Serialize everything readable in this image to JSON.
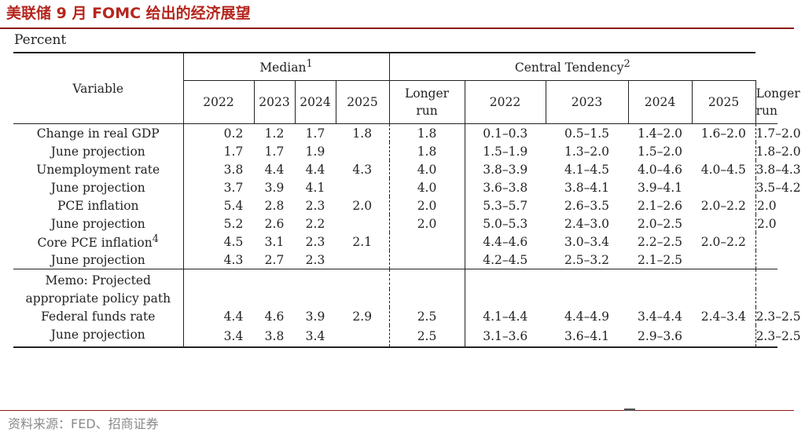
{
  "title": "美联储 9 月 FOMC 给出的经济展望",
  "unit_label": "Percent",
  "header": {
    "variable": "Variable",
    "median": "Median",
    "median_note": "1",
    "central_tendency": "Central Tendency",
    "central_tendency_note": "2",
    "years": [
      "2022",
      "2023",
      "2024",
      "2025"
    ],
    "longer_run_1": "Longer",
    "longer_run_2": "run"
  },
  "rows": [
    {
      "label": "Change in real GDP",
      "median": [
        "0.2",
        "1.2",
        "1.7",
        "1.8",
        "1.8"
      ],
      "central": [
        "0.1–0.3",
        "0.5–1.5",
        "1.4–2.0",
        "1.6–2.0",
        "1.7–2.0"
      ]
    },
    {
      "label": "June projection",
      "median": [
        "1.7",
        "1.7",
        "1.9",
        "",
        "1.8"
      ],
      "central": [
        "1.5–1.9",
        "1.3–2.0",
        "1.5–2.0",
        "",
        "1.8–2.0"
      ]
    },
    {
      "label": "Unemployment rate",
      "median": [
        "3.8",
        "4.4",
        "4.4",
        "4.3",
        "4.0"
      ],
      "central": [
        "3.8–3.9",
        "4.1–4.5",
        "4.0–4.6",
        "4.0–4.5",
        "3.8–4.3"
      ]
    },
    {
      "label": "June projection",
      "median": [
        "3.7",
        "3.9",
        "4.1",
        "",
        "4.0"
      ],
      "central": [
        "3.6–3.8",
        "3.8–4.1",
        "3.9–4.1",
        "",
        "3.5–4.2"
      ]
    },
    {
      "label": "PCE inflation",
      "median": [
        "5.4",
        "2.8",
        "2.3",
        "2.0",
        "2.0"
      ],
      "central": [
        "5.3–5.7",
        "2.6–3.5",
        "2.1–2.6",
        "2.0–2.2",
        "2.0"
      ]
    },
    {
      "label": "June projection",
      "median": [
        "5.2",
        "2.6",
        "2.2",
        "",
        "2.0"
      ],
      "central": [
        "5.0–5.3",
        "2.4–3.0",
        "2.0–2.5",
        "",
        "2.0"
      ]
    },
    {
      "label": "Core PCE inflation",
      "note": "4",
      "median": [
        "4.5",
        "3.1",
        "2.3",
        "2.1",
        ""
      ],
      "central": [
        "4.4–4.6",
        "3.0–3.4",
        "2.2–2.5",
        "2.0–2.2",
        ""
      ]
    },
    {
      "label": "June projection",
      "median": [
        "4.3",
        "2.7",
        "2.3",
        "",
        ""
      ],
      "central": [
        "4.2–4.5",
        "2.5–3.2",
        "2.1–2.5",
        "",
        ""
      ]
    },
    {
      "label": "Federal funds rate",
      "median": [
        "4.4",
        "4.6",
        "3.9",
        "2.9",
        "2.5"
      ],
      "central": [
        "4.1–4.4",
        "4.4–4.9",
        "3.4–4.4",
        "2.4–3.4",
        "2.3–2.5"
      ]
    },
    {
      "label": "June projection",
      "median": [
        "3.4",
        "3.8",
        "3.4",
        "",
        "2.5"
      ],
      "central": [
        "3.1–3.6",
        "3.6–4.1",
        "2.9–3.6",
        "",
        "2.3–2.5"
      ]
    }
  ],
  "memo": {
    "line1": "Memo: Projected",
    "line2": "appropriate policy path"
  },
  "source": "资料来源：FED、招商证券"
}
